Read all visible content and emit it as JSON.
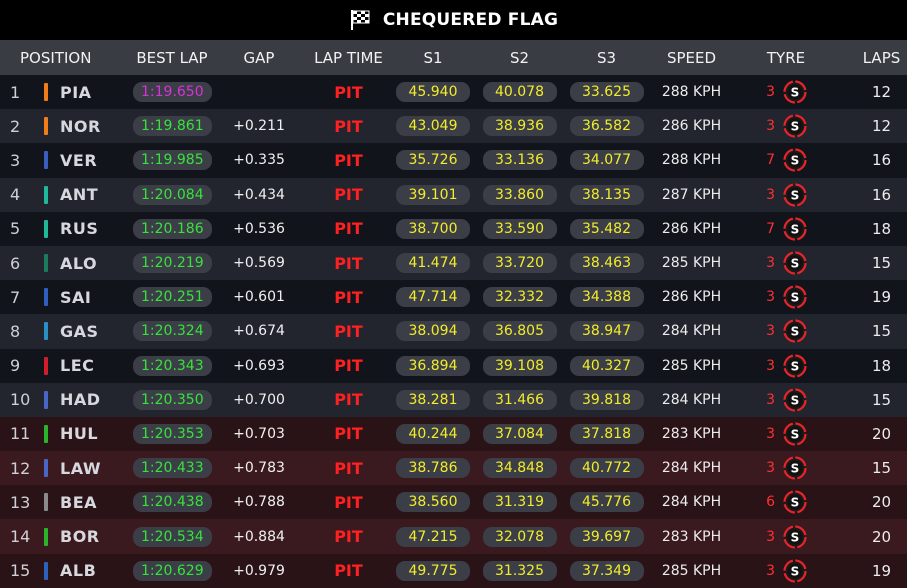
{
  "header": {
    "title": "CHEQUERED FLAG",
    "flag_icon": "chequered-flag-icon"
  },
  "columns": [
    "POSITION",
    "BEST LAP",
    "GAP",
    "LAP TIME",
    "S1",
    "S2",
    "S3",
    "SPEED",
    "TYRE",
    "LAPS"
  ],
  "colors": {
    "best_lap": "#37e23a",
    "fastest_lap": "#d633d6",
    "pit": "#ff2020",
    "sector": "#f2ec2a",
    "tyre_soft": "#e8242b"
  },
  "rows": [
    {
      "pos": "1",
      "driver": "PIA",
      "team_color": "#f07d1a",
      "best": "1:19.650",
      "fastest": true,
      "gap": "",
      "lap": "PIT",
      "s1": "45.940",
      "s2": "40.078",
      "s3": "33.625",
      "speed": "288 KPH",
      "tyre_age": "3",
      "tyre": "S",
      "laps": "12"
    },
    {
      "pos": "2",
      "driver": "NOR",
      "team_color": "#f07d1a",
      "best": "1:19.861",
      "fastest": false,
      "gap": "+0.211",
      "lap": "PIT",
      "s1": "43.049",
      "s2": "38.936",
      "s3": "36.582",
      "speed": "286 KPH",
      "tyre_age": "3",
      "tyre": "S",
      "laps": "12"
    },
    {
      "pos": "3",
      "driver": "VER",
      "team_color": "#3a5dbf",
      "best": "1:19.985",
      "fastest": false,
      "gap": "+0.335",
      "lap": "PIT",
      "s1": "35.726",
      "s2": "33.136",
      "s3": "34.077",
      "speed": "288 KPH",
      "tyre_age": "7",
      "tyre": "S",
      "laps": "16"
    },
    {
      "pos": "4",
      "driver": "ANT",
      "team_color": "#1fb89a",
      "best": "1:20.084",
      "fastest": false,
      "gap": "+0.434",
      "lap": "PIT",
      "s1": "39.101",
      "s2": "33.860",
      "s3": "38.135",
      "speed": "287 KPH",
      "tyre_age": "3",
      "tyre": "S",
      "laps": "16"
    },
    {
      "pos": "5",
      "driver": "RUS",
      "team_color": "#1fb89a",
      "best": "1:20.186",
      "fastest": false,
      "gap": "+0.536",
      "lap": "PIT",
      "s1": "38.700",
      "s2": "33.590",
      "s3": "35.482",
      "speed": "286 KPH",
      "tyre_age": "7",
      "tyre": "S",
      "laps": "18"
    },
    {
      "pos": "6",
      "driver": "ALO",
      "team_color": "#1e7a5c",
      "best": "1:20.219",
      "fastest": false,
      "gap": "+0.569",
      "lap": "PIT",
      "s1": "41.474",
      "s2": "33.720",
      "s3": "38.463",
      "speed": "285 KPH",
      "tyre_age": "3",
      "tyre": "S",
      "laps": "15"
    },
    {
      "pos": "7",
      "driver": "SAI",
      "team_color": "#2f5fbf",
      "best": "1:20.251",
      "fastest": false,
      "gap": "+0.601",
      "lap": "PIT",
      "s1": "47.714",
      "s2": "32.332",
      "s3": "34.388",
      "speed": "286 KPH",
      "tyre_age": "3",
      "tyre": "S",
      "laps": "19"
    },
    {
      "pos": "8",
      "driver": "GAS",
      "team_color": "#2a8fc2",
      "best": "1:20.324",
      "fastest": false,
      "gap": "+0.674",
      "lap": "PIT",
      "s1": "38.094",
      "s2": "36.805",
      "s3": "38.947",
      "speed": "284 KPH",
      "tyre_age": "3",
      "tyre": "S",
      "laps": "15"
    },
    {
      "pos": "9",
      "driver": "LEC",
      "team_color": "#d01e2a",
      "best": "1:20.343",
      "fastest": false,
      "gap": "+0.693",
      "lap": "PIT",
      "s1": "36.894",
      "s2": "39.108",
      "s3": "40.327",
      "speed": "285 KPH",
      "tyre_age": "3",
      "tyre": "S",
      "laps": "18"
    },
    {
      "pos": "10",
      "driver": "HAD",
      "team_color": "#4a66c4",
      "best": "1:20.350",
      "fastest": false,
      "gap": "+0.700",
      "lap": "PIT",
      "s1": "38.281",
      "s2": "31.466",
      "s3": "39.818",
      "speed": "284 KPH",
      "tyre_age": "3",
      "tyre": "S",
      "laps": "15"
    },
    {
      "pos": "11",
      "driver": "HUL",
      "team_color": "#2bb32b",
      "best": "1:20.353",
      "fastest": false,
      "gap": "+0.703",
      "lap": "PIT",
      "s1": "40.244",
      "s2": "37.084",
      "s3": "37.818",
      "speed": "283 KPH",
      "tyre_age": "3",
      "tyre": "S",
      "laps": "20"
    },
    {
      "pos": "12",
      "driver": "LAW",
      "team_color": "#4a66c4",
      "best": "1:20.433",
      "fastest": false,
      "gap": "+0.783",
      "lap": "PIT",
      "s1": "38.786",
      "s2": "34.848",
      "s3": "40.772",
      "speed": "284 KPH",
      "tyre_age": "3",
      "tyre": "S",
      "laps": "15"
    },
    {
      "pos": "13",
      "driver": "BEA",
      "team_color": "#8a8a8a",
      "best": "1:20.438",
      "fastest": false,
      "gap": "+0.788",
      "lap": "PIT",
      "s1": "38.560",
      "s2": "31.319",
      "s3": "45.776",
      "speed": "284 KPH",
      "tyre_age": "6",
      "tyre": "S",
      "laps": "20"
    },
    {
      "pos": "14",
      "driver": "BOR",
      "team_color": "#2bb32b",
      "best": "1:20.534",
      "fastest": false,
      "gap": "+0.884",
      "lap": "PIT",
      "s1": "47.215",
      "s2": "32.078",
      "s3": "39.697",
      "speed": "283 KPH",
      "tyre_age": "3",
      "tyre": "S",
      "laps": "20"
    },
    {
      "pos": "15",
      "driver": "ALB",
      "team_color": "#2f5fbf",
      "best": "1:20.629",
      "fastest": false,
      "gap": "+0.979",
      "lap": "PIT",
      "s1": "49.775",
      "s2": "31.325",
      "s3": "37.349",
      "speed": "285 KPH",
      "tyre_age": "3",
      "tyre": "S",
      "laps": "19"
    }
  ]
}
